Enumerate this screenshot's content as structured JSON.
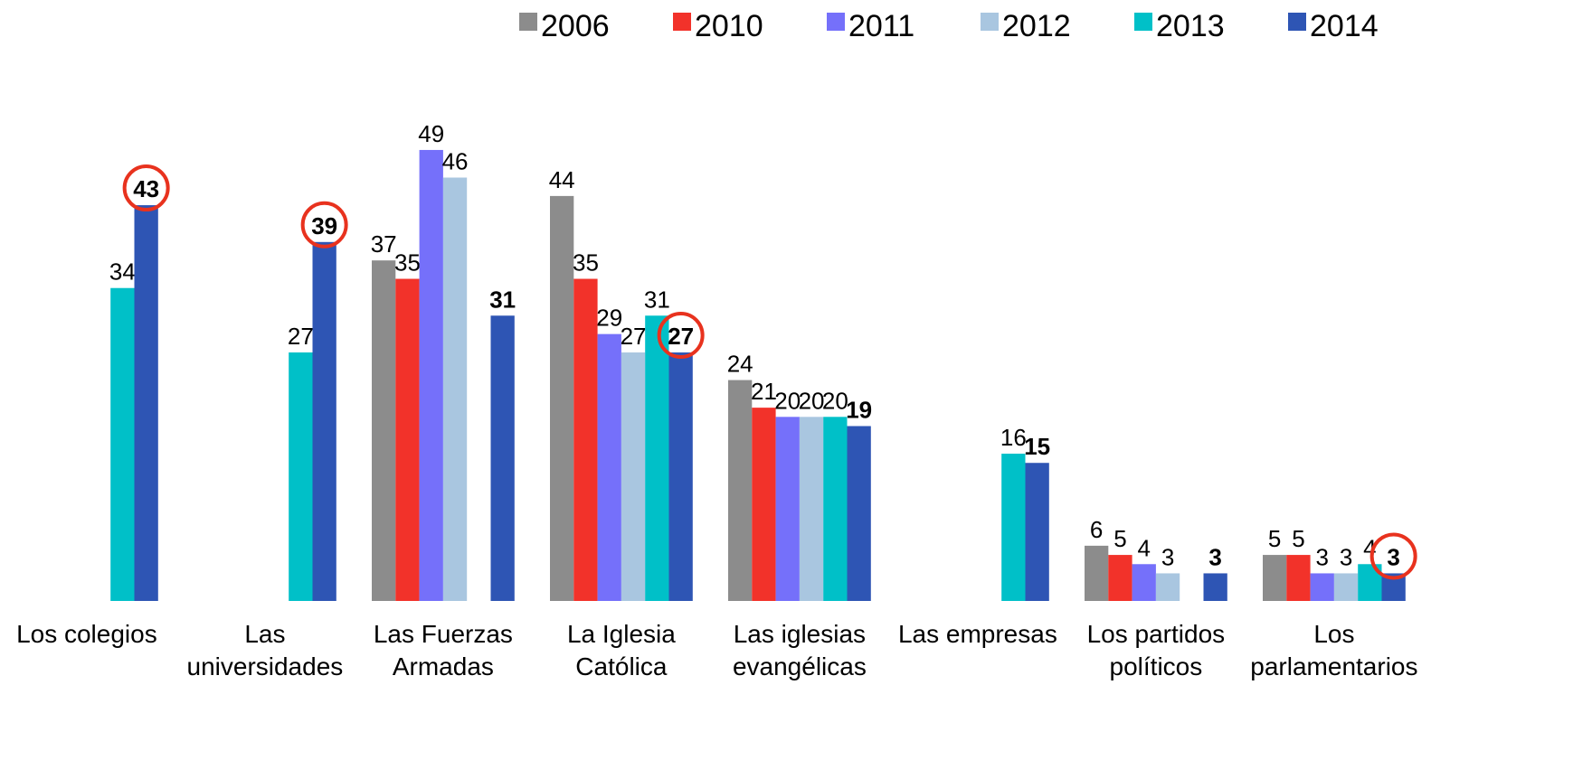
{
  "chart_data": {
    "type": "bar",
    "categories": [
      "Los colegios",
      "Las universidades",
      "Las Fuerzas Armadas",
      "La Iglesia Católica",
      "Las iglesias evangélicas",
      "Las empresas",
      "Los partidos políticos",
      "Los parlamentarios"
    ],
    "series": [
      {
        "name": "2006",
        "color": "#8c8c8c",
        "values": [
          null,
          null,
          37,
          44,
          24,
          null,
          6,
          5
        ]
      },
      {
        "name": "2010",
        "color": "#f2322a",
        "values": [
          null,
          null,
          35,
          35,
          21,
          null,
          5,
          5
        ]
      },
      {
        "name": "2011",
        "color": "#7570fa",
        "values": [
          null,
          null,
          49,
          29,
          20,
          null,
          4,
          3
        ]
      },
      {
        "name": "2012",
        "color": "#a9c6e0",
        "values": [
          null,
          null,
          46,
          27,
          20,
          null,
          3,
          3
        ]
      },
      {
        "name": "2013",
        "color": "#00c0c8",
        "values": [
          34,
          27,
          null,
          31,
          20,
          16,
          null,
          4
        ]
      },
      {
        "name": "2014",
        "color": "#2e55b4",
        "values": [
          43,
          39,
          31,
          27,
          19,
          15,
          3,
          3
        ]
      }
    ],
    "ylim": [
      0,
      65
    ],
    "bold_series": 5,
    "highlight": {
      "series": 5,
      "categories": [
        0,
        1,
        3,
        7
      ],
      "color": "#e8321e"
    },
    "legend": "top-right"
  }
}
